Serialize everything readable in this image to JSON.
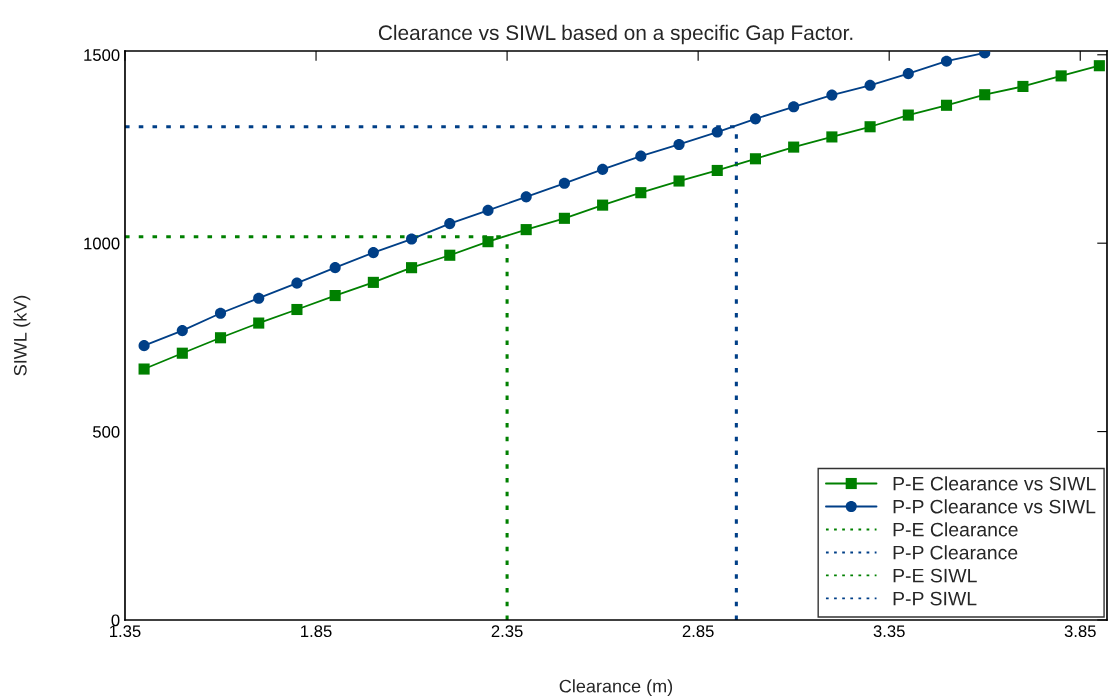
{
  "chart_data": {
    "type": "line",
    "title": "Clearance vs SIWL based on a specific Gap Factor.",
    "xlabel": "Clearance (m)",
    "ylabel": "SIWL (kV)",
    "xlim": [
      1.35,
      3.92
    ],
    "xticks": [
      1.35,
      1.85,
      2.35,
      2.85,
      3.35,
      3.85
    ],
    "ylim": [
      0,
      1510
    ],
    "yticks": [
      0,
      500,
      1000,
      1500
    ],
    "grid": false,
    "legend": "bottom right",
    "series": [
      {
        "name": "P-E Clearance vs SIWL",
        "color": "#008000",
        "marker": "square",
        "line_style": "solid",
        "x": [
          1.4,
          1.5,
          1.6,
          1.7,
          1.8,
          1.9,
          2.0,
          2.1,
          2.2,
          2.3,
          2.4,
          2.5,
          2.6,
          2.7,
          2.8,
          2.9,
          3.0,
          3.1,
          3.2,
          3.3,
          3.4,
          3.5,
          3.6,
          3.7,
          3.8,
          3.9
        ],
        "values": [
          666,
          708,
          749,
          788,
          824,
          861,
          896,
          935,
          968,
          1004,
          1036,
          1066,
          1101,
          1134,
          1165,
          1193,
          1224,
          1255,
          1282,
          1309,
          1340,
          1366,
          1394,
          1416,
          1444,
          1471
        ]
      },
      {
        "name": "P-P Clearance vs SIWL",
        "color": "#003f87",
        "marker": "circle",
        "line_style": "solid",
        "x": [
          1.4,
          1.5,
          1.6,
          1.7,
          1.8,
          1.9,
          2.0,
          2.1,
          2.2,
          2.3,
          2.4,
          2.5,
          2.6,
          2.7,
          2.8,
          2.9,
          3.0,
          3.1,
          3.2,
          3.3,
          3.4,
          3.5,
          3.6
        ],
        "values": [
          728,
          768,
          814,
          854,
          894,
          935,
          975,
          1011,
          1052,
          1087,
          1123,
          1159,
          1196,
          1231,
          1262,
          1295,
          1330,
          1362,
          1393,
          1419,
          1450,
          1483,
          1505
        ]
      },
      {
        "name": "P-E Clearance",
        "color": "#008000",
        "marker": "none",
        "line_style": "dotted",
        "x": [
          2.35,
          2.35
        ],
        "values": [
          0,
          1017
        ]
      },
      {
        "name": "P-P Clearance",
        "color": "#003f87",
        "marker": "none",
        "line_style": "dotted",
        "x": [
          2.95,
          2.95
        ],
        "values": [
          0,
          1309
        ]
      },
      {
        "name": "P-E SIWL",
        "color": "#008000",
        "marker": "none",
        "line_style": "dotted",
        "x": [
          1.35,
          2.35
        ],
        "values": [
          1017,
          1017
        ]
      },
      {
        "name": "P-P SIWL",
        "color": "#003f87",
        "marker": "none",
        "line_style": "dotted",
        "x": [
          1.35,
          2.95
        ],
        "values": [
          1309,
          1309
        ]
      }
    ]
  }
}
